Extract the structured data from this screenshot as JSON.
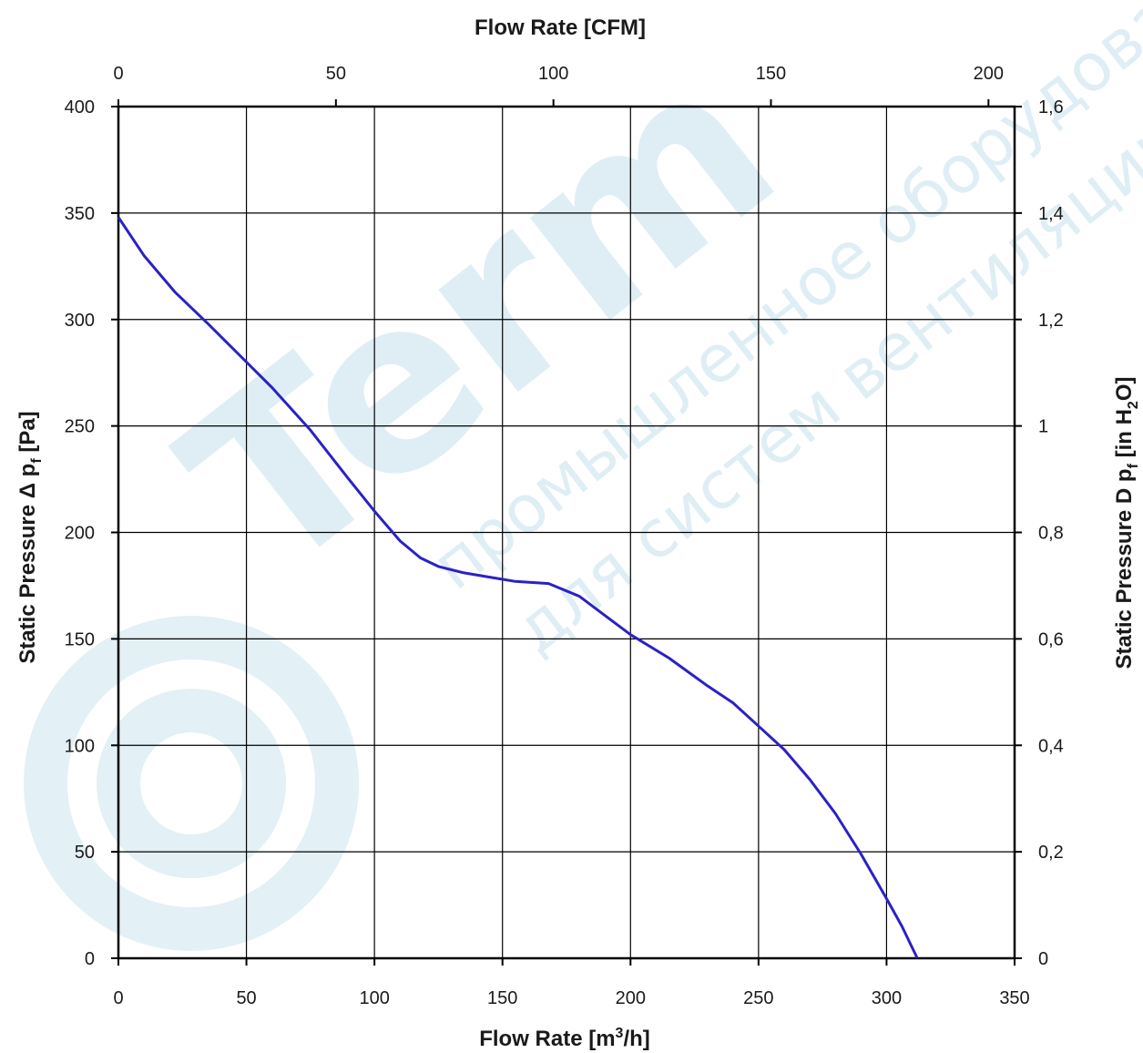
{
  "chart_data": {
    "type": "line",
    "title": "",
    "xlabel_bottom_parts": [
      "Flow Rate [m",
      "3",
      "/h]"
    ],
    "xlabel_top": "Flow Rate [CFM]",
    "ylabel_left_parts": [
      "Static Pressure Δ p",
      "f",
      " [Pa]"
    ],
    "ylabel_right_parts": [
      "Static Pressure D p",
      "f",
      " [in H",
      "2",
      "O]"
    ],
    "xlim": [
      0,
      350
    ],
    "ylim": [
      0,
      400
    ],
    "x_ticks": [
      "0",
      "50",
      "100",
      "150",
      "200",
      "250",
      "300",
      "350"
    ],
    "x_tick_values": [
      0,
      50,
      100,
      150,
      200,
      250,
      300,
      350
    ],
    "y_ticks": [
      "0",
      "50",
      "100",
      "150",
      "200",
      "250",
      "300",
      "350",
      "400"
    ],
    "y_tick_values": [
      0,
      50,
      100,
      150,
      200,
      250,
      300,
      350,
      400
    ],
    "top_ticks": [
      "0",
      "50",
      "100",
      "150",
      "200"
    ],
    "top_tick_values_cfm": [
      0,
      50,
      100,
      150,
      200
    ],
    "cfm_to_m3h": 1.699,
    "right_ticks": [
      "0",
      "0,2",
      "0,4",
      "0,6",
      "0,8",
      "1",
      "1,2",
      "1,4",
      "1,6"
    ],
    "right_tick_values": [
      0,
      0.2,
      0.4,
      0.6,
      0.8,
      1.0,
      1.2,
      1.4,
      1.6
    ],
    "right_ylim": [
      0,
      1.6
    ],
    "grid": true,
    "line_color": "#2a22c4",
    "series": [
      {
        "x": [
          0,
          10,
          22,
          35,
          50,
          60,
          75,
          90,
          100,
          110,
          118,
          125,
          135,
          145,
          155,
          168,
          180,
          190,
          200,
          215,
          230,
          240,
          250,
          260,
          270,
          280,
          290,
          300,
          306,
          312
        ],
        "y": [
          348,
          330,
          313,
          298,
          280,
          268,
          248,
          225,
          210,
          196,
          188,
          184,
          181,
          179,
          177,
          176,
          170,
          161,
          152,
          141,
          128,
          120,
          109,
          98,
          84,
          68,
          49,
          28,
          15,
          0
        ]
      }
    ]
  },
  "watermark": {
    "brand": "Term",
    "line1": "промышленное оборудование",
    "line2": "для систем вентиляции",
    "color": "#dfeef5"
  }
}
